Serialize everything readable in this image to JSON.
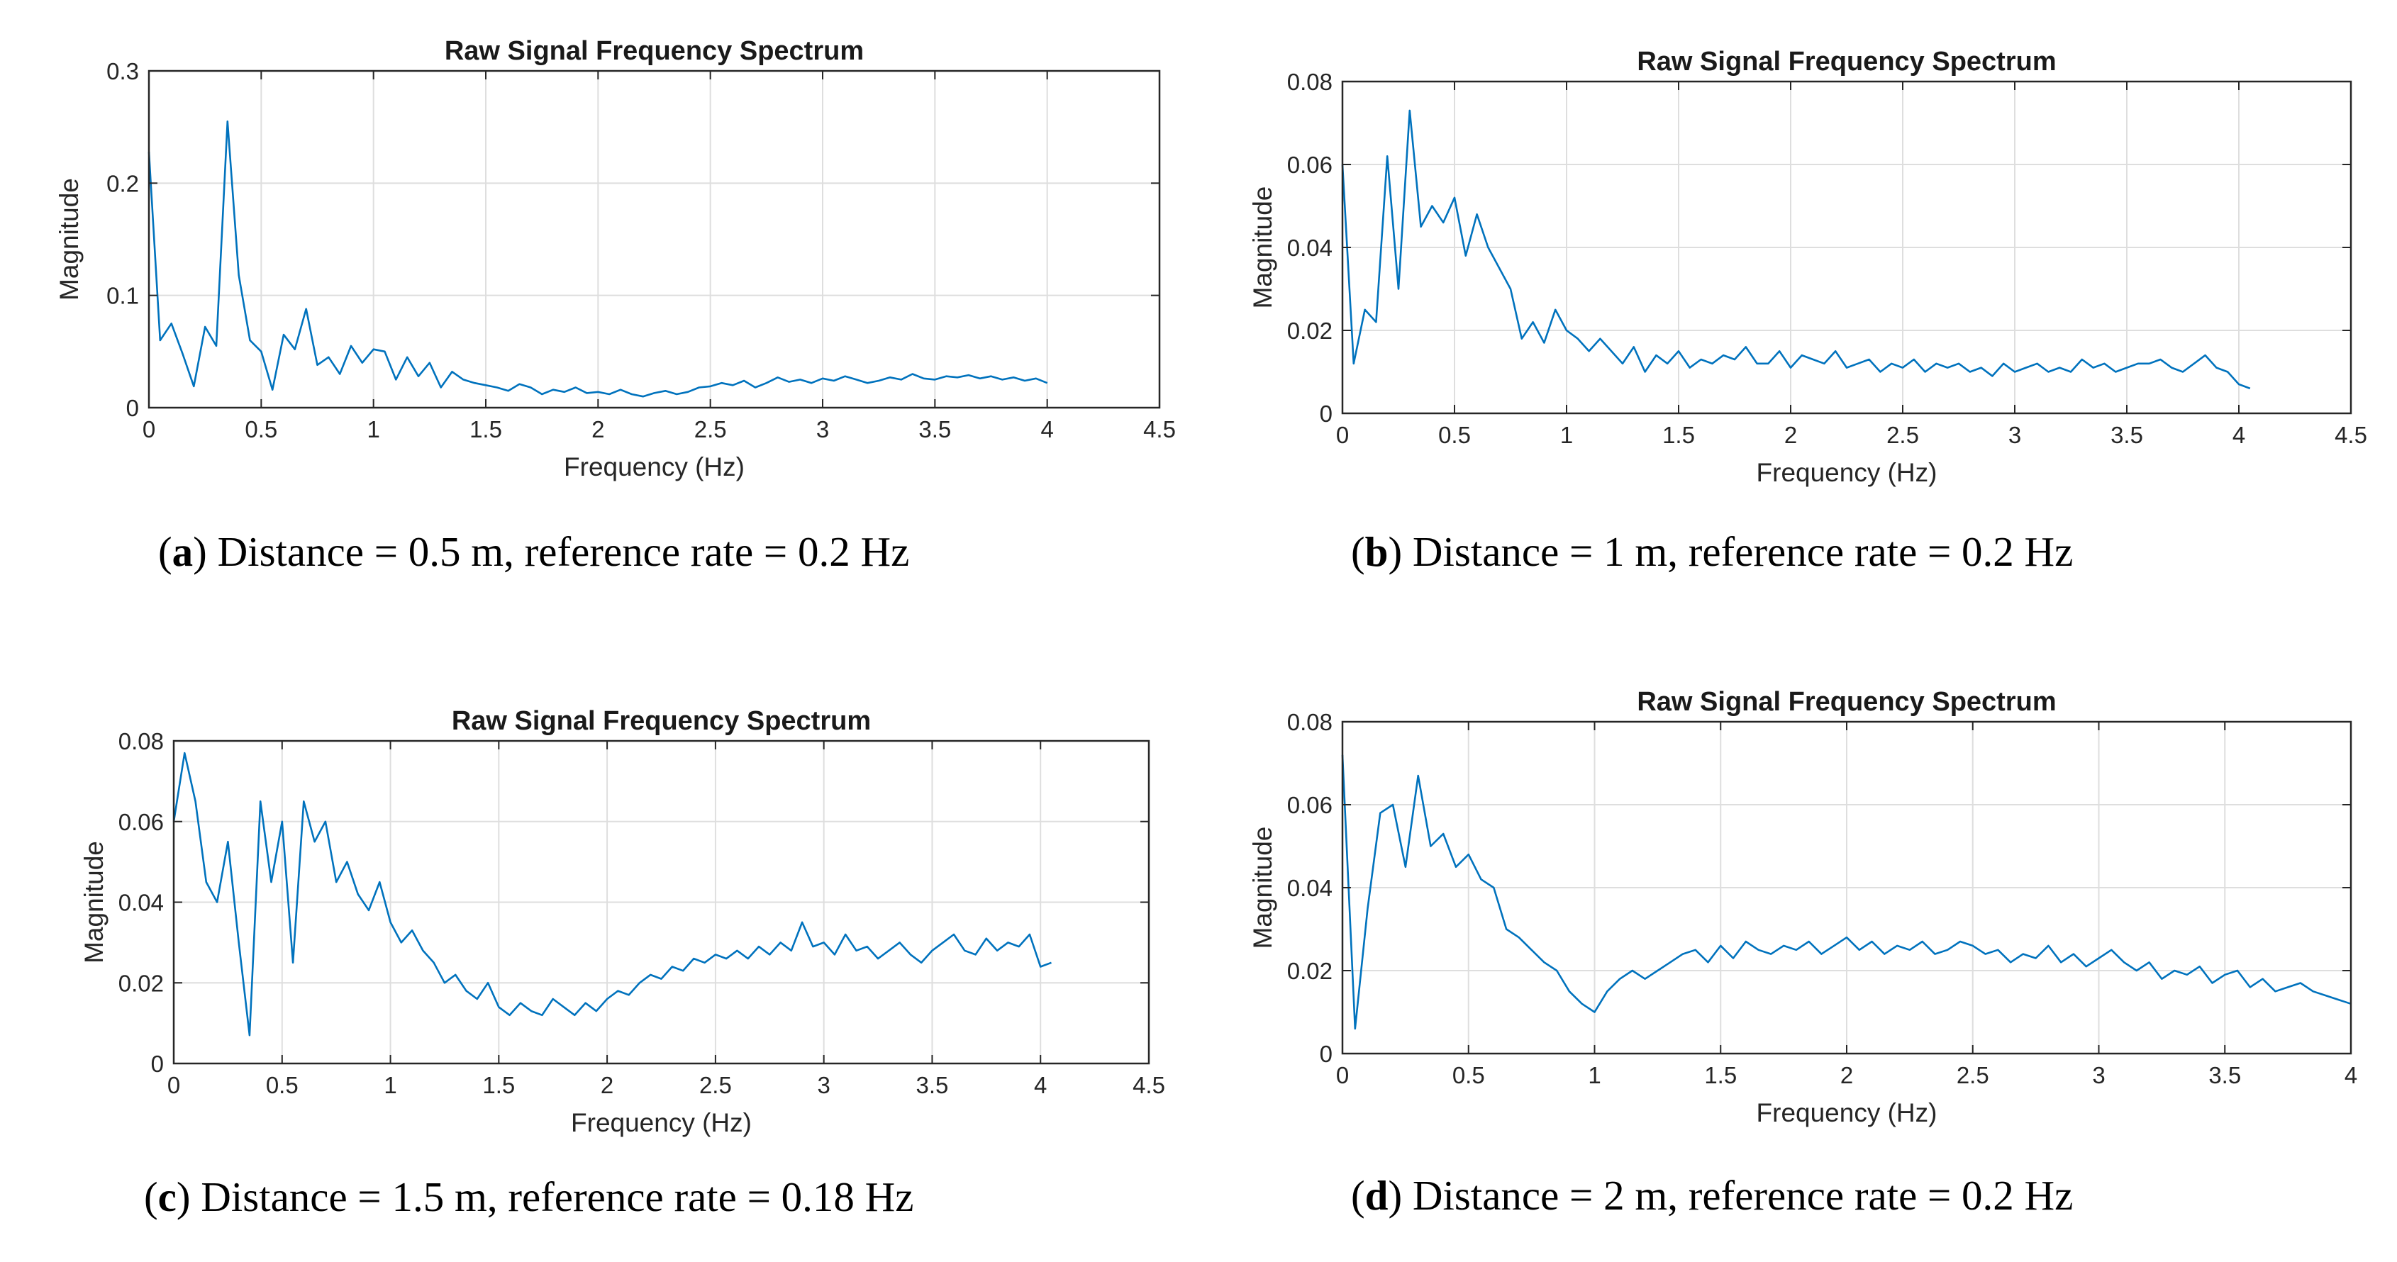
{
  "chart_data": [
    {
      "type": "line",
      "panel": "a",
      "title": "Raw Signal Frequency Spectrum",
      "xlabel": "Frequency (Hz)",
      "ylabel": "Magnitude",
      "xlim": [
        0,
        4.5
      ],
      "ylim": [
        0,
        0.3
      ],
      "xticks": [
        0,
        0.5,
        1,
        1.5,
        2,
        2.5,
        3,
        3.5,
        4,
        4.5
      ],
      "xtick_labels": [
        "0",
        "0.5",
        "1",
        "1.5",
        "2",
        "2.5",
        "3",
        "3.5",
        "4",
        "4.5"
      ],
      "yticks": [
        0,
        0.1,
        0.2,
        0.3
      ],
      "ytick_labels": [
        "0",
        "0.1",
        "0.2",
        "0.3"
      ],
      "grid": true,
      "caption": {
        "letter": "a",
        "text": "Distance = 0.5 m, reference rate = 0.2 Hz"
      },
      "series": [
        {
          "name": "spectrum",
          "x_start": 0,
          "x_step": 0.05,
          "y": [
            0.228,
            0.06,
            0.075,
            0.048,
            0.019,
            0.072,
            0.055,
            0.255,
            0.118,
            0.06,
            0.05,
            0.016,
            0.065,
            0.052,
            0.088,
            0.038,
            0.045,
            0.03,
            0.055,
            0.04,
            0.052,
            0.05,
            0.025,
            0.045,
            0.028,
            0.04,
            0.018,
            0.032,
            0.025,
            0.022,
            0.02,
            0.018,
            0.015,
            0.021,
            0.018,
            0.012,
            0.016,
            0.014,
            0.018,
            0.013,
            0.014,
            0.012,
            0.016,
            0.012,
            0.01,
            0.013,
            0.015,
            0.012,
            0.014,
            0.018,
            0.019,
            0.022,
            0.02,
            0.024,
            0.018,
            0.022,
            0.027,
            0.023,
            0.025,
            0.022,
            0.026,
            0.024,
            0.028,
            0.025,
            0.022,
            0.024,
            0.027,
            0.025,
            0.03,
            0.026,
            0.025,
            0.028,
            0.027,
            0.029,
            0.026,
            0.028,
            0.025,
            0.027,
            0.024,
            0.026,
            0.022
          ]
        }
      ]
    },
    {
      "type": "line",
      "panel": "b",
      "title": "Raw Signal Frequency Spectrum",
      "xlabel": "Frequency (Hz)",
      "ylabel": "Magnitude",
      "xlim": [
        0,
        4.5
      ],
      "ylim": [
        0,
        0.08
      ],
      "xticks": [
        0,
        0.5,
        1,
        1.5,
        2,
        2.5,
        3,
        3.5,
        4,
        4.5
      ],
      "xtick_labels": [
        "0",
        "0.5",
        "1",
        "1.5",
        "2",
        "2.5",
        "3",
        "3.5",
        "4",
        "4.5"
      ],
      "yticks": [
        0,
        0.02,
        0.04,
        0.06,
        0.08
      ],
      "ytick_labels": [
        "0",
        "0.02",
        "0.04",
        "0.06",
        "0.08"
      ],
      "grid": true,
      "caption": {
        "letter": "b",
        "text": "Distance = 1 m, reference rate = 0.2 Hz"
      },
      "series": [
        {
          "name": "spectrum",
          "x_start": 0,
          "x_step": 0.05,
          "y": [
            0.06,
            0.012,
            0.025,
            0.022,
            0.062,
            0.03,
            0.073,
            0.045,
            0.05,
            0.046,
            0.052,
            0.038,
            0.048,
            0.04,
            0.035,
            0.03,
            0.018,
            0.022,
            0.017,
            0.025,
            0.02,
            0.018,
            0.015,
            0.018,
            0.015,
            0.012,
            0.016,
            0.01,
            0.014,
            0.012,
            0.015,
            0.011,
            0.013,
            0.012,
            0.014,
            0.013,
            0.016,
            0.012,
            0.012,
            0.015,
            0.011,
            0.014,
            0.013,
            0.012,
            0.015,
            0.011,
            0.012,
            0.013,
            0.01,
            0.012,
            0.011,
            0.013,
            0.01,
            0.012,
            0.011,
            0.012,
            0.01,
            0.011,
            0.009,
            0.012,
            0.01,
            0.011,
            0.012,
            0.01,
            0.011,
            0.01,
            0.013,
            0.011,
            0.012,
            0.01,
            0.011,
            0.012,
            0.012,
            0.013,
            0.011,
            0.01,
            0.012,
            0.014,
            0.011,
            0.01,
            0.007,
            0.006
          ]
        }
      ]
    },
    {
      "type": "line",
      "panel": "c",
      "title": "Raw Signal Frequency Spectrum",
      "xlabel": "Frequency (Hz)",
      "ylabel": "Magnitude",
      "xlim": [
        0,
        4.5
      ],
      "ylim": [
        0,
        0.08
      ],
      "xticks": [
        0,
        0.5,
        1,
        1.5,
        2,
        2.5,
        3,
        3.5,
        4,
        4.5
      ],
      "xtick_labels": [
        "0",
        "0.5",
        "1",
        "1.5",
        "2",
        "2.5",
        "3",
        "3.5",
        "4",
        "4.5"
      ],
      "yticks": [
        0,
        0.02,
        0.04,
        0.06,
        0.08
      ],
      "ytick_labels": [
        "0",
        "0.02",
        "0.04",
        "0.06",
        "0.08"
      ],
      "grid": true,
      "caption": {
        "letter": "c",
        "text": "Distance = 1.5 m, reference rate = 0.18 Hz"
      },
      "series": [
        {
          "name": "spectrum",
          "x_start": 0,
          "x_step": 0.05,
          "y": [
            0.06,
            0.077,
            0.065,
            0.045,
            0.04,
            0.055,
            0.03,
            0.007,
            0.065,
            0.045,
            0.06,
            0.025,
            0.065,
            0.055,
            0.06,
            0.045,
            0.05,
            0.042,
            0.038,
            0.045,
            0.035,
            0.03,
            0.033,
            0.028,
            0.025,
            0.02,
            0.022,
            0.018,
            0.016,
            0.02,
            0.014,
            0.012,
            0.015,
            0.013,
            0.012,
            0.016,
            0.014,
            0.012,
            0.015,
            0.013,
            0.016,
            0.018,
            0.017,
            0.02,
            0.022,
            0.021,
            0.024,
            0.023,
            0.026,
            0.025,
            0.027,
            0.026,
            0.028,
            0.026,
            0.029,
            0.027,
            0.03,
            0.028,
            0.035,
            0.029,
            0.03,
            0.027,
            0.032,
            0.028,
            0.029,
            0.026,
            0.028,
            0.03,
            0.027,
            0.025,
            0.028,
            0.03,
            0.032,
            0.028,
            0.027,
            0.031,
            0.028,
            0.03,
            0.029,
            0.032,
            0.024,
            0.025
          ]
        }
      ]
    },
    {
      "type": "line",
      "panel": "d",
      "title": "Raw Signal Frequency Spectrum",
      "xlabel": "Frequency (Hz)",
      "ylabel": "Magnitude",
      "xlim": [
        0,
        4
      ],
      "ylim": [
        0,
        0.08
      ],
      "xticks": [
        0,
        0.5,
        1,
        1.5,
        2,
        2.5,
        3,
        3.5,
        4
      ],
      "xtick_labels": [
        "0",
        "0.5",
        "1",
        "1.5",
        "2",
        "2.5",
        "3",
        "3.5",
        "4"
      ],
      "yticks": [
        0,
        0.02,
        0.04,
        0.06,
        0.08
      ],
      "ytick_labels": [
        "0",
        "0.02",
        "0.04",
        "0.06",
        "0.08"
      ],
      "grid": true,
      "caption": {
        "letter": "d",
        "text": "Distance = 2 m, reference rate = 0.2 Hz"
      },
      "series": [
        {
          "name": "spectrum",
          "x_start": 0,
          "x_step": 0.05,
          "y": [
            0.072,
            0.006,
            0.035,
            0.058,
            0.06,
            0.045,
            0.067,
            0.05,
            0.053,
            0.045,
            0.048,
            0.042,
            0.04,
            0.03,
            0.028,
            0.025,
            0.022,
            0.02,
            0.015,
            0.012,
            0.01,
            0.015,
            0.018,
            0.02,
            0.018,
            0.02,
            0.022,
            0.024,
            0.025,
            0.022,
            0.026,
            0.023,
            0.027,
            0.025,
            0.024,
            0.026,
            0.025,
            0.027,
            0.024,
            0.026,
            0.028,
            0.025,
            0.027,
            0.024,
            0.026,
            0.025,
            0.027,
            0.024,
            0.025,
            0.027,
            0.026,
            0.024,
            0.025,
            0.022,
            0.024,
            0.023,
            0.026,
            0.022,
            0.024,
            0.021,
            0.023,
            0.025,
            0.022,
            0.02,
            0.022,
            0.018,
            0.02,
            0.019,
            0.021,
            0.017,
            0.019,
            0.02,
            0.016,
            0.018,
            0.015,
            0.016,
            0.017,
            0.015,
            0.014,
            0.013,
            0.012
          ]
        }
      ]
    }
  ]
}
